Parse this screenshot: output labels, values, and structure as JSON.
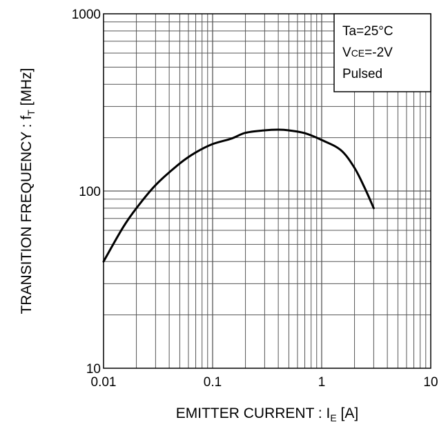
{
  "chart_data": {
    "type": "line",
    "title": "",
    "xlabel": "EMITTER CURRENT : I",
    "xlabel_sub": "E",
    "xlabel_unit": " [A]",
    "ylabel": "TRANSITION FREQUENCY : f",
    "ylabel_sub": "T",
    "ylabel_unit": " [MHz]",
    "xscale": "log",
    "yscale": "log",
    "xlim": [
      0.01,
      10
    ],
    "ylim": [
      10,
      1000
    ],
    "grid": true,
    "x_ticks": [
      "0.01",
      "0.1",
      "1",
      "10"
    ],
    "y_ticks": [
      "10",
      "100",
      "1000"
    ],
    "legend": {
      "placement": "top-right",
      "line1": "Ta=25°C",
      "line2_prefix": "V",
      "line2_sub": "CE",
      "line2_suffix": "=-2V",
      "line3": "Pulsed"
    },
    "series": [
      {
        "x": [
          0.01,
          0.015,
          0.02,
          0.03,
          0.05,
          0.07,
          0.1,
          0.15,
          0.2,
          0.3,
          0.4,
          0.5,
          0.7,
          1.0,
          1.5,
          2.0,
          2.5,
          3.0
        ],
        "y": [
          40,
          62,
          80,
          108,
          143,
          165,
          184,
          198,
          213,
          220,
          222,
          220,
          212,
          194,
          170,
          135,
          103,
          80
        ]
      }
    ]
  }
}
